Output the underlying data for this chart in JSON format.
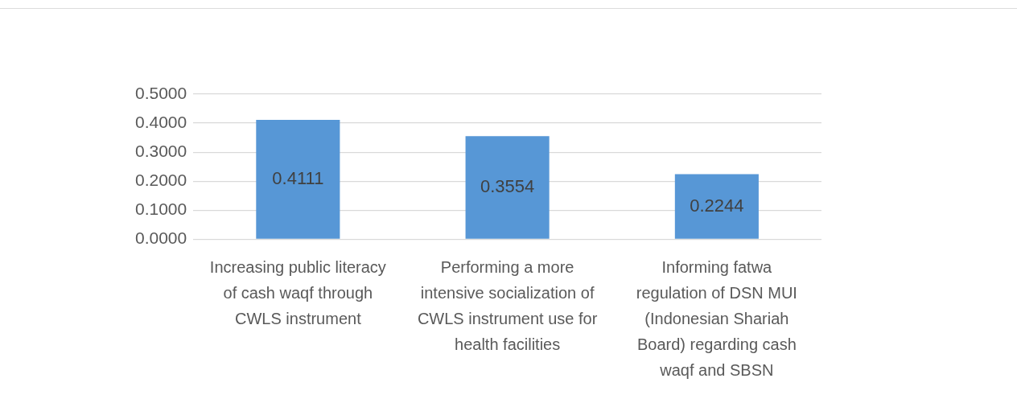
{
  "chart_data": {
    "type": "bar",
    "categories": [
      "Increasing public literacy of cash waqf through CWLS instrument",
      "Performing a more intensive socialization of CWLS instrument use for health facilities",
      "Informing fatwa regulation of DSN MUI (Indonesian Shariah Board) regarding cash waqf and SBSN"
    ],
    "values": [
      0.4111,
      0.3554,
      0.2244
    ],
    "color": "#5797d6",
    "ylim": [
      0,
      0.5
    ],
    "yticks": [
      {
        "value": 0,
        "label": "0.0000"
      },
      {
        "value": 0.1,
        "label": "0.1000"
      },
      {
        "value": 0.2,
        "label": "0.2000"
      },
      {
        "value": 0.3,
        "label": "0.3000"
      },
      {
        "value": 0.4,
        "label": "0.4000"
      },
      {
        "value": 0.5,
        "label": "0.5000"
      }
    ],
    "grid": true,
    "data_labels": true
  }
}
